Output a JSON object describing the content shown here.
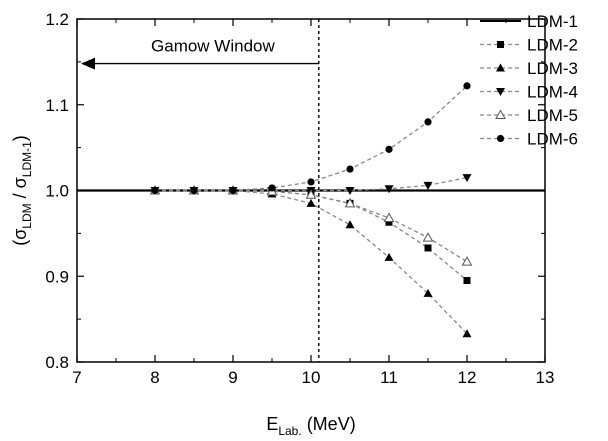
{
  "chart_data": {
    "type": "line",
    "xlabel": {
      "main": "E",
      "sub": "Lab.",
      "unit": " (MeV)"
    },
    "ylabel": {
      "open": "(σ",
      "sub1": "LDM",
      "slash": " / σ",
      "sub2": "LDM-1",
      "close": ")"
    },
    "xlim": [
      7,
      13
    ],
    "ylim": [
      0.8,
      1.2
    ],
    "x_ticks": [
      7,
      8,
      9,
      10,
      11,
      12,
      13
    ],
    "y_ticks": [
      0.8,
      0.9,
      1.0,
      1.1,
      1.2
    ],
    "x_tick_labels": [
      "7",
      "8",
      "9",
      "10",
      "11",
      "12",
      "13"
    ],
    "y_tick_labels": [
      "0.8",
      "0.9",
      "1.0",
      "1.1",
      "1.2"
    ],
    "grid": false,
    "legend_position": "top-right",
    "vline_x": 10.1,
    "annotation": {
      "text": "Gamow Window",
      "arrow_from_x": 10.1,
      "arrow_to_x": 7,
      "y": 1.148
    },
    "series": [
      {
        "name": "LDM-1",
        "style": "solid",
        "marker": "none",
        "color": "#000000",
        "x": [
          7,
          13
        ],
        "y": [
          1.0,
          1.0
        ]
      },
      {
        "name": "LDM-2",
        "style": "dashed",
        "marker": "square",
        "color": "#888888",
        "x": [
          8,
          8.5,
          9,
          9.5,
          10,
          10.5,
          11,
          11.5,
          12
        ],
        "y": [
          1.0,
          1.0,
          1.0,
          0.999,
          0.995,
          0.985,
          0.963,
          0.933,
          0.895
        ]
      },
      {
        "name": "LDM-3",
        "style": "dashed",
        "marker": "triangle-up",
        "color": "#888888",
        "x": [
          8,
          8.5,
          9,
          9.5,
          10,
          10.5,
          11,
          11.5,
          12
        ],
        "y": [
          1.0,
          1.0,
          1.0,
          0.996,
          0.985,
          0.96,
          0.922,
          0.88,
          0.833
        ]
      },
      {
        "name": "LDM-4",
        "style": "dashed",
        "marker": "triangle-down",
        "color": "#888888",
        "x": [
          8,
          8.5,
          9,
          9.5,
          10,
          10.5,
          11,
          11.5,
          12
        ],
        "y": [
          1.0,
          1.0,
          1.0,
          1.0,
          1.0,
          1.0,
          1.002,
          1.006,
          1.015
        ]
      },
      {
        "name": "LDM-5",
        "style": "dashed",
        "marker": "triangle-open",
        "color": "#888888",
        "x": [
          8,
          8.5,
          9,
          9.5,
          10,
          10.5,
          11,
          11.5,
          12
        ],
        "y": [
          1.0,
          1.0,
          1.0,
          0.999,
          0.995,
          0.985,
          0.968,
          0.945,
          0.917
        ]
      },
      {
        "name": "LDM-6",
        "style": "dashed",
        "marker": "circle",
        "color": "#888888",
        "x": [
          8,
          8.5,
          9,
          9.5,
          10,
          10.5,
          11,
          11.5,
          12
        ],
        "y": [
          1.0,
          1.0,
          1.0,
          1.003,
          1.01,
          1.025,
          1.048,
          1.08,
          1.122
        ]
      }
    ]
  }
}
